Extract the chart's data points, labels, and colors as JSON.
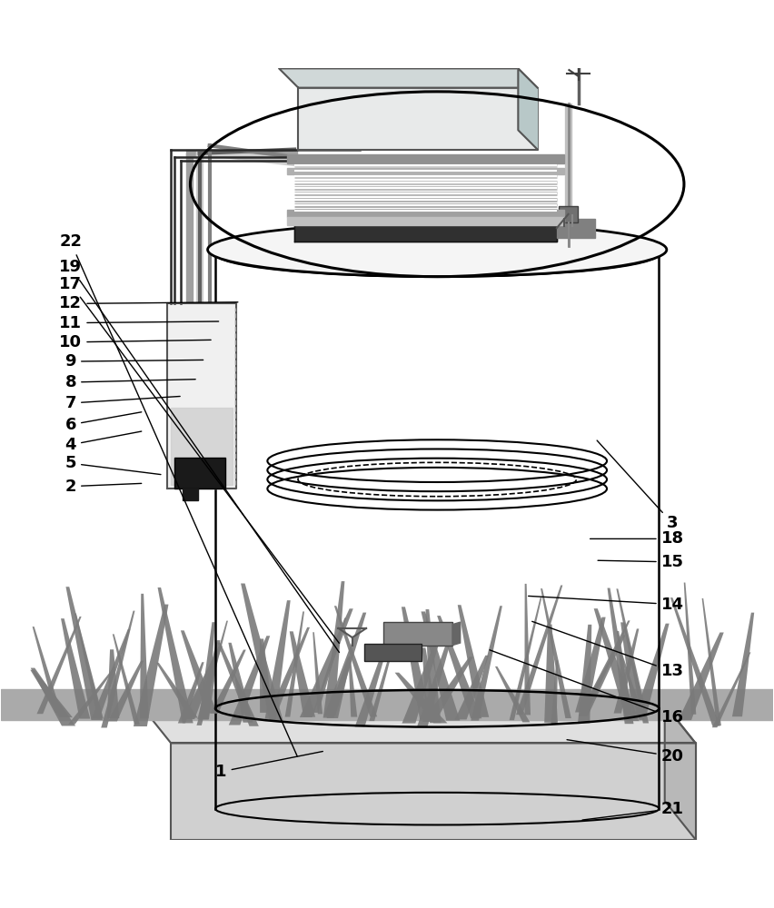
{
  "fig_width": 8.52,
  "fig_height": 10.0,
  "bg_color": "#ffffff",
  "label_fontsize": 13,
  "label_color": "#000000",
  "label_positions": {
    "1": [
      0.285,
      0.088,
      0.42,
      0.115
    ],
    "2": [
      0.09,
      0.458,
      0.185,
      0.462
    ],
    "3": [
      0.87,
      0.41,
      0.77,
      0.52
    ],
    "4": [
      0.09,
      0.512,
      0.185,
      0.53
    ],
    "5": [
      0.09,
      0.488,
      0.21,
      0.473
    ],
    "6": [
      0.09,
      0.538,
      0.185,
      0.555
    ],
    "7": [
      0.09,
      0.566,
      0.235,
      0.575
    ],
    "8": [
      0.09,
      0.593,
      0.255,
      0.597
    ],
    "9": [
      0.09,
      0.62,
      0.265,
      0.622
    ],
    "10": [
      0.09,
      0.645,
      0.275,
      0.648
    ],
    "11": [
      0.09,
      0.67,
      0.285,
      0.672
    ],
    "12": [
      0.09,
      0.695,
      0.31,
      0.697
    ],
    "13": [
      0.87,
      0.218,
      0.685,
      0.284
    ],
    "14": [
      0.87,
      0.305,
      0.68,
      0.316
    ],
    "15": [
      0.87,
      0.36,
      0.77,
      0.362
    ],
    "16": [
      0.87,
      0.158,
      0.63,
      0.247
    ],
    "17": [
      0.09,
      0.72,
      0.44,
      0.252
    ],
    "18": [
      0.87,
      0.39,
      0.76,
      0.39
    ],
    "19": [
      0.09,
      0.742,
      0.44,
      0.24
    ],
    "20": [
      0.87,
      0.108,
      0.73,
      0.13
    ],
    "21": [
      0.87,
      0.04,
      0.75,
      0.025
    ],
    "22": [
      0.09,
      0.775,
      0.385,
      0.105
    ]
  }
}
